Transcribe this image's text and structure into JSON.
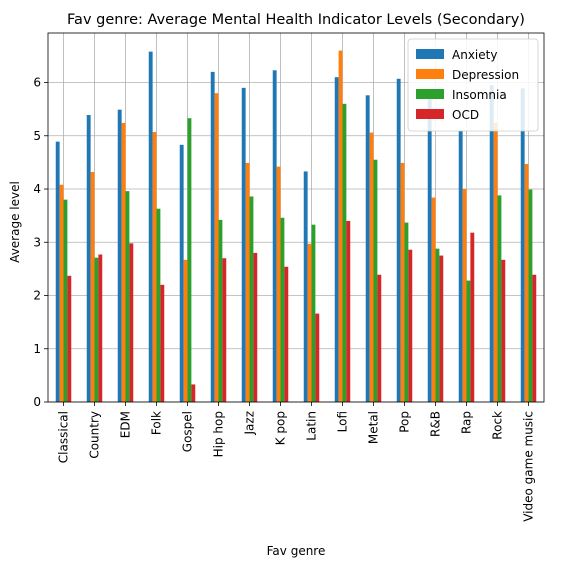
{
  "chart_data": {
    "type": "bar",
    "title": "Fav genre: Average Mental Health Indicator Levels (Secondary)",
    "xlabel": "Fav genre",
    "ylabel": "Average level",
    "ylim": [
      0,
      6.93
    ],
    "yticks": [
      0,
      1,
      2,
      3,
      4,
      5,
      6
    ],
    "grid": true,
    "legend_position": "top-right",
    "categories": [
      "Classical",
      "Country",
      "EDM",
      "Folk",
      "Gospel",
      "Hip hop",
      "Jazz",
      "K pop",
      "Latin",
      "Lofi",
      "Metal",
      "Pop",
      "R&B",
      "Rap",
      "Rock",
      "Video game music"
    ],
    "series": [
      {
        "name": "Anxiety",
        "color": "#1f77b4",
        "values": [
          4.89,
          5.39,
          5.49,
          6.58,
          4.83,
          6.2,
          5.9,
          6.23,
          4.33,
          6.1,
          5.76,
          6.07,
          5.75,
          5.1,
          5.95,
          5.89
        ]
      },
      {
        "name": "Depression",
        "color": "#ff7f0e",
        "values": [
          4.08,
          4.32,
          5.24,
          5.07,
          2.67,
          5.8,
          4.49,
          4.42,
          2.97,
          6.6,
          5.06,
          4.49,
          3.84,
          4.0,
          5.24,
          4.47
        ]
      },
      {
        "name": "Insomnia",
        "color": "#2ca02c",
        "values": [
          3.8,
          2.71,
          3.96,
          3.63,
          5.33,
          3.42,
          3.86,
          3.46,
          3.33,
          5.6,
          4.55,
          3.37,
          2.88,
          2.28,
          3.88,
          3.99
        ]
      },
      {
        "name": "OCD",
        "color": "#d62728",
        "values": [
          2.37,
          2.77,
          2.98,
          2.2,
          0.33,
          2.7,
          2.8,
          2.54,
          1.66,
          3.4,
          2.39,
          2.86,
          2.75,
          3.18,
          2.67,
          2.39
        ]
      }
    ]
  }
}
